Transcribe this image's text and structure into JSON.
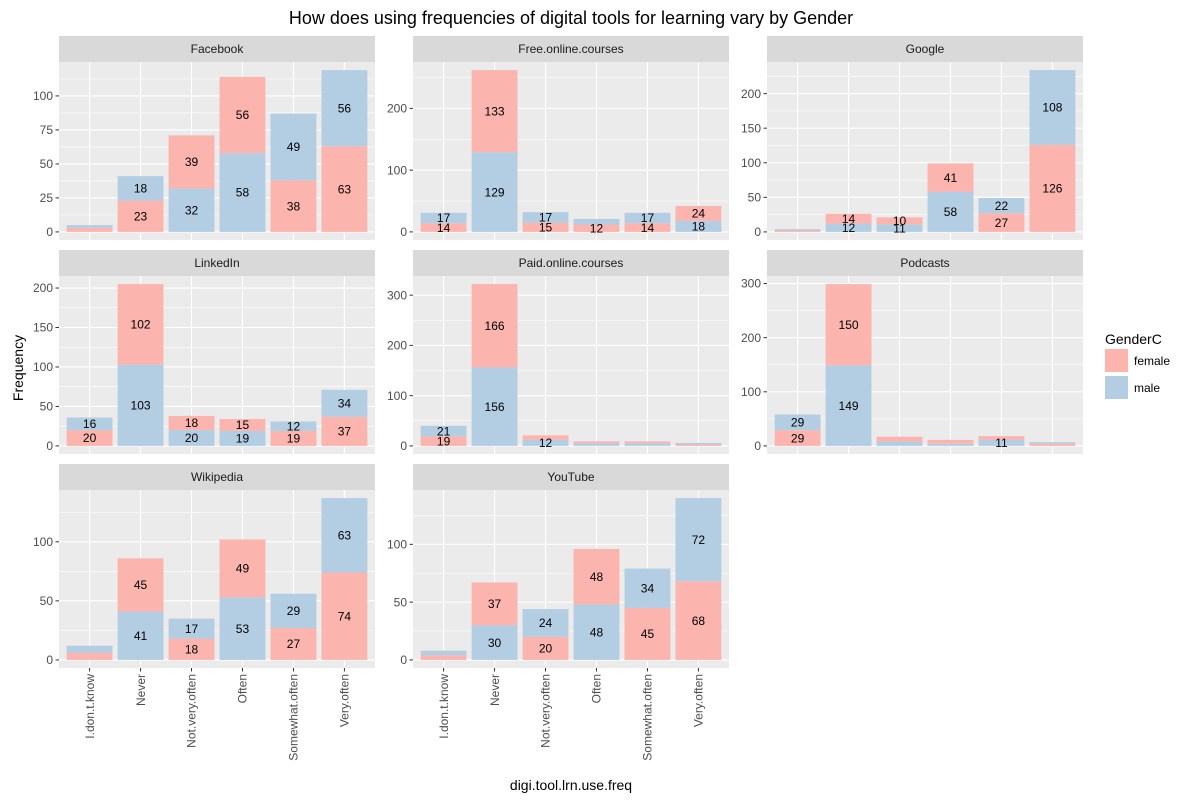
{
  "chart_data": {
    "type": "bar",
    "stacked": true,
    "title": "How does using frequencies of digital tools for learning vary by Gender",
    "xlabel": "digi.tool.lrn.use.freq",
    "ylabel": "Frequency",
    "categories": [
      "I.don.t.know",
      "Never",
      "Not.very.often",
      "Often",
      "Somewhat.often",
      "Very.often"
    ],
    "grid": true,
    "legend": {
      "title": "GenderC",
      "position": "right",
      "entries": [
        {
          "name": "female",
          "color": "#FBB4AE"
        },
        {
          "name": "male",
          "color": "#B3CDE3"
        }
      ]
    },
    "facets": [
      {
        "name": "Facebook",
        "yticks": [
          0,
          25,
          50,
          75,
          100
        ],
        "series": {
          "female": [
            3,
            23,
            39,
            56,
            38,
            63
          ],
          "male": [
            2,
            18,
            32,
            58,
            49,
            56
          ]
        },
        "stack_bottom": [
          "female",
          "female",
          "male",
          "male",
          "female",
          "female"
        ]
      },
      {
        "name": "Free.online.courses",
        "yticks": [
          0,
          100,
          200
        ],
        "series": {
          "female": [
            14,
            133,
            15,
            12,
            14,
            24
          ],
          "male": [
            17,
            129,
            17,
            9,
            17,
            18
          ]
        },
        "stack_bottom": [
          "female",
          "male",
          "female",
          "female",
          "female",
          "male"
        ]
      },
      {
        "name": "Google",
        "yticks": [
          0,
          50,
          100,
          150,
          200
        ],
        "series": {
          "female": [
            2,
            14,
            10,
            41,
            27,
            126
          ],
          "male": [
            2,
            12,
            11,
            58,
            22,
            108
          ]
        },
        "stack_bottom": [
          "female",
          "male",
          "male",
          "male",
          "female",
          "female"
        ]
      },
      {
        "name": "LinkedIn",
        "yticks": [
          0,
          50,
          100,
          150,
          200
        ],
        "series": {
          "female": [
            20,
            102,
            18,
            15,
            19,
            37
          ],
          "male": [
            16,
            103,
            20,
            19,
            12,
            34
          ]
        },
        "stack_bottom": [
          "female",
          "male",
          "male",
          "male",
          "female",
          "female"
        ]
      },
      {
        "name": "Paid.online.courses",
        "yticks": [
          0,
          100,
          200,
          300
        ],
        "series": {
          "female": [
            19,
            166,
            9,
            4,
            4,
            3
          ],
          "male": [
            21,
            156,
            12,
            5,
            5,
            3
          ]
        },
        "stack_bottom": [
          "female",
          "male",
          "male",
          "male",
          "male",
          "female"
        ]
      },
      {
        "name": "Podcasts",
        "yticks": [
          0,
          100,
          200,
          300
        ],
        "series": {
          "female": [
            29,
            150,
            9,
            7,
            7,
            4
          ],
          "male": [
            29,
            149,
            8,
            4,
            11,
            3
          ]
        },
        "stack_bottom": [
          "female",
          "male",
          "male",
          "male",
          "male",
          "female"
        ]
      },
      {
        "name": "Wikipedia",
        "yticks": [
          0,
          50,
          100
        ],
        "series": {
          "female": [
            6,
            45,
            18,
            49,
            27,
            74
          ],
          "male": [
            6,
            41,
            17,
            53,
            29,
            63
          ]
        },
        "stack_bottom": [
          "female",
          "male",
          "female",
          "male",
          "female",
          "female"
        ]
      },
      {
        "name": "YouTube",
        "yticks": [
          0,
          50,
          100
        ],
        "series": {
          "female": [
            4,
            37,
            20,
            48,
            45,
            68
          ],
          "male": [
            4,
            30,
            24,
            48,
            34,
            72
          ]
        },
        "stack_bottom": [
          "female",
          "male",
          "female",
          "male",
          "female",
          "female"
        ]
      }
    ]
  }
}
